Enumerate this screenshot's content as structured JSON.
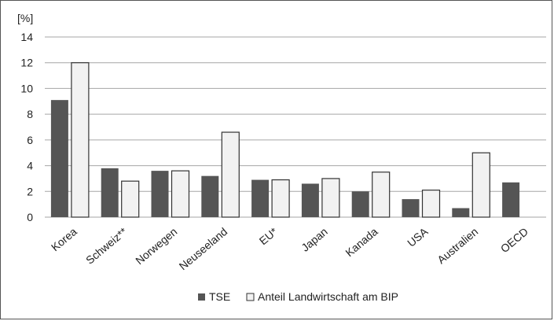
{
  "chart_data": {
    "type": "bar",
    "unit_label": "[%]",
    "categories": [
      "Korea",
      "Schweiz**",
      "Norwegen",
      "Neuseeland",
      "EU*",
      "Japan",
      "Kanada",
      "USA",
      "Australien",
      "OECD"
    ],
    "series": [
      {
        "name": "TSE",
        "color": "#555555",
        "values": [
          9.1,
          3.8,
          3.6,
          3.2,
          2.9,
          2.6,
          2.0,
          1.4,
          0.7,
          2.7
        ]
      },
      {
        "name": "Anteil Landwirtschaft am BIP",
        "color": "#f2f2f2",
        "values": [
          12.0,
          2.8,
          3.6,
          6.6,
          2.9,
          3.0,
          3.5,
          2.1,
          5.0,
          null
        ]
      }
    ],
    "ylim": [
      0,
      14
    ],
    "yticks": [
      0,
      2,
      4,
      6,
      8,
      10,
      12,
      14
    ],
    "grid": true,
    "legend_position": "bottom"
  }
}
